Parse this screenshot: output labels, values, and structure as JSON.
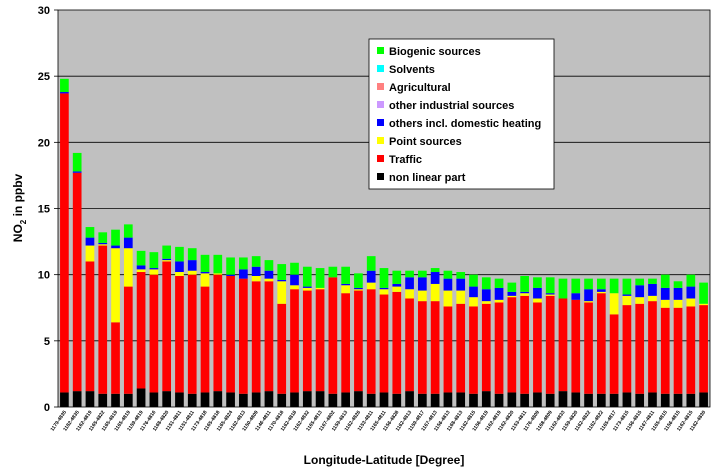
{
  "chart_data": {
    "type": "bar",
    "stacked": true,
    "xlabel": "Longitude-Latitude [Degree]",
    "ylabel": "NO",
    "ylabel_sub": "2",
    "ylabel_suffix": " in ppbv",
    "ylim": [
      0,
      30
    ],
    "yticks": [
      0,
      5,
      10,
      15,
      20,
      25,
      30
    ],
    "grid": true,
    "legend_position": "upper-right",
    "categories": [
      "1179-4835",
      "1182-4835",
      "1162-4819",
      "1165-4822",
      "1165-4819",
      "1165-4819",
      "1159-4819",
      "1176-4816",
      "1168-4820",
      "1151-4811",
      "1151-4811",
      "1173-4818",
      "1165-4818",
      "1165-4824",
      "1162-4813",
      "1150-4809",
      "1146-4811",
      "1170-4818",
      "1162-4818",
      "1162-4832",
      "1165-4813",
      "1167-4802",
      "1159-4813",
      "1162-4826",
      "1153-4811",
      "1165-4811",
      "1156-4828",
      "1162-4813",
      "1159-4817",
      "1167-4813",
      "1156-4813",
      "1168-4813",
      "1162-4815",
      "1156-4819",
      "1162-4819",
      "1162-4820",
      "1153-4811",
      "1176-4809",
      "1168-4809",
      "1162-4833",
      "1159-4820",
      "1162-4822",
      "1162-4822",
      "1165-4817",
      "1173-4815",
      "1156-4815",
      "1167-4811",
      "1165-4815",
      "1156-4815",
      "1162-4815",
      "1162-4830"
    ],
    "series": [
      {
        "name": "non linear part",
        "color": "#000000",
        "values": [
          1.1,
          1.2,
          1.2,
          1.0,
          1.0,
          1.0,
          1.4,
          1.1,
          1.2,
          1.1,
          1.0,
          1.1,
          1.2,
          1.1,
          1.0,
          1.1,
          1.2,
          1.0,
          1.1,
          1.2,
          1.2,
          1.0,
          1.1,
          1.2,
          1.0,
          1.1,
          1.0,
          1.2,
          1.0,
          1.0,
          1.1,
          1.1,
          1.0,
          1.2,
          1.0,
          1.1,
          1.0,
          1.1,
          1.0,
          1.2,
          1.1,
          1.0,
          1.0,
          1.0,
          1.1,
          1.0,
          1.1,
          1.0,
          1.0,
          1.0,
          1.1
        ]
      },
      {
        "name": "Traffic",
        "color": "#ff0000",
        "values": [
          22.6,
          16.5,
          9.8,
          11.2,
          5.4,
          8.1,
          8.8,
          8.9,
          9.8,
          8.8,
          9.0,
          8.0,
          8.8,
          8.8,
          8.7,
          8.4,
          8.3,
          6.8,
          7.8,
          7.6,
          7.7,
          8.8,
          7.5,
          7.6,
          7.9,
          7.4,
          7.7,
          7.0,
          7.0,
          7.0,
          6.5,
          6.7,
          6.6,
          6.6,
          6.9,
          7.2,
          7.4,
          6.8,
          7.4,
          7.0,
          7.0,
          6.9,
          7.6,
          6.0,
          6.6,
          6.8,
          6.9,
          6.5,
          6.5,
          6.6,
          6.6
        ]
      },
      {
        "name": "Point sources",
        "color": "#ffff00",
        "values": [
          0.0,
          0.0,
          1.2,
          0.1,
          5.6,
          2.9,
          0.2,
          0.4,
          0.1,
          0.3,
          0.3,
          1.0,
          0.1,
          0.0,
          0.0,
          0.4,
          0.2,
          1.7,
          0.3,
          0.2,
          0.1,
          0.0,
          0.6,
          0.1,
          0.5,
          0.4,
          0.4,
          0.7,
          0.8,
          1.3,
          1.2,
          1.0,
          0.7,
          0.2,
          0.2,
          0.1,
          0.2,
          0.3,
          0.1,
          0.0,
          0.0,
          0.1,
          0.1,
          1.6,
          0.7,
          0.5,
          0.4,
          0.6,
          0.6,
          0.6,
          0.1
        ]
      },
      {
        "name": "others incl. domestic heating",
        "color": "#0000ff",
        "values": [
          0.1,
          0.1,
          0.6,
          0.1,
          0.2,
          0.8,
          0.3,
          0.1,
          0.1,
          0.8,
          0.8,
          0.1,
          0.0,
          0.1,
          0.7,
          0.7,
          0.6,
          0.1,
          0.8,
          0.1,
          0.0,
          0.0,
          0.1,
          0.1,
          0.9,
          0.1,
          0.2,
          0.9,
          1.0,
          0.9,
          0.9,
          0.9,
          0.8,
          0.9,
          0.9,
          0.3,
          0.1,
          0.8,
          0.1,
          0.0,
          0.5,
          0.9,
          0.2,
          0.0,
          0.1,
          0.9,
          0.9,
          0.9,
          0.9,
          0.9,
          0.0
        ]
      },
      {
        "name": "other industrial sources",
        "color": "#cc99ff",
        "values": [
          0.0,
          0.0,
          0.0,
          0.0,
          0.0,
          0.0,
          0.0,
          0.0,
          0.0,
          0.0,
          0.0,
          0.0,
          0.0,
          0.0,
          0.0,
          0.0,
          0.0,
          0.0,
          0.0,
          0.0,
          0.0,
          0.0,
          0.0,
          0.0,
          0.0,
          0.0,
          0.0,
          0.0,
          0.0,
          0.0,
          0.0,
          0.0,
          0.0,
          0.0,
          0.0,
          0.0,
          0.0,
          0.0,
          0.0,
          0.0,
          0.0,
          0.0,
          0.0,
          0.0,
          0.0,
          0.0,
          0.0,
          0.0,
          0.0,
          0.0,
          0.0
        ]
      },
      {
        "name": "Agricultural",
        "color": "#ff8080",
        "values": [
          0.0,
          0.0,
          0.0,
          0.0,
          0.0,
          0.0,
          0.0,
          0.0,
          0.0,
          0.0,
          0.0,
          0.0,
          0.0,
          0.0,
          0.0,
          0.0,
          0.0,
          0.0,
          0.0,
          0.0,
          0.0,
          0.0,
          0.0,
          0.0,
          0.0,
          0.0,
          0.0,
          0.0,
          0.0,
          0.0,
          0.0,
          0.0,
          0.0,
          0.0,
          0.0,
          0.0,
          0.0,
          0.0,
          0.0,
          0.0,
          0.0,
          0.0,
          0.0,
          0.0,
          0.0,
          0.0,
          0.0,
          0.0,
          0.0,
          0.0,
          0.0
        ]
      },
      {
        "name": "Solvents",
        "color": "#00ffff",
        "values": [
          0.0,
          0.0,
          0.0,
          0.0,
          0.0,
          0.0,
          0.0,
          0.0,
          0.0,
          0.0,
          0.0,
          0.0,
          0.0,
          0.0,
          0.0,
          0.0,
          0.0,
          0.0,
          0.0,
          0.0,
          0.0,
          0.0,
          0.0,
          0.0,
          0.0,
          0.0,
          0.0,
          0.0,
          0.0,
          0.0,
          0.0,
          0.0,
          0.0,
          0.0,
          0.0,
          0.0,
          0.0,
          0.0,
          0.0,
          0.0,
          0.0,
          0.0,
          0.0,
          0.0,
          0.0,
          0.0,
          0.0,
          0.0,
          0.0,
          0.0,
          0.0
        ]
      },
      {
        "name": "Biogenic sources",
        "color": "#00ff00",
        "values": [
          1.0,
          1.4,
          0.8,
          0.8,
          1.2,
          1.0,
          1.1,
          1.2,
          1.0,
          1.1,
          0.9,
          1.3,
          1.4,
          1.3,
          0.9,
          0.8,
          0.8,
          1.2,
          0.9,
          1.5,
          1.5,
          0.8,
          1.3,
          1.1,
          1.1,
          1.5,
          1.0,
          0.5,
          0.5,
          0.3,
          0.6,
          0.5,
          0.9,
          0.9,
          0.7,
          0.7,
          1.2,
          0.8,
          1.2,
          1.5,
          1.1,
          0.8,
          0.8,
          1.1,
          1.2,
          0.5,
          0.4,
          1.0,
          0.5,
          0.9,
          1.6
        ]
      }
    ]
  },
  "legend_order": [
    "Biogenic sources",
    "Solvents",
    "Agricultural",
    "other industrial sources",
    "others incl. domestic heating",
    "Point sources",
    "Traffic",
    "non linear part"
  ],
  "colors": {
    "plot_background": "#c0c0c0",
    "grid": "#000000"
  }
}
